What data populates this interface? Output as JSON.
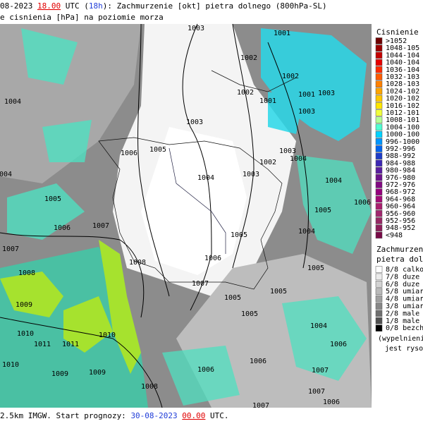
{
  "header": {
    "line1": {
      "prefix": "08-2023 ",
      "time": "18.00",
      "mid1": " UTC (",
      "lead": "18h",
      "mid2": "): Zachmurzenie [okt] pietra dolnego (800hPa-SL)"
    },
    "line2": "e cisnienia [hPa] na poziomie morza"
  },
  "footer": {
    "prefix": "2.5km IMGW. Start prognozy: ",
    "date": "30-08-2023",
    "sep": " ",
    "time": "00.00",
    "suffix": " UTC."
  },
  "pressure_legend": {
    "title": "Cisnienie [hP",
    "items": [
      {
        "label": ">1052",
        "color": "#6e0000"
      },
      {
        "label": "1048-105",
        "color": "#9a0000"
      },
      {
        "label": "1044-104",
        "color": "#c40000"
      },
      {
        "label": "1040-104",
        "color": "#e60000"
      },
      {
        "label": "1036-104",
        "color": "#ff2a00"
      },
      {
        "label": "1032-103",
        "color": "#ff5a00"
      },
      {
        "label": "1028-103",
        "color": "#ff8000"
      },
      {
        "label": "1024-102",
        "color": "#ffa500"
      },
      {
        "label": "1020-102",
        "color": "#ffc800"
      },
      {
        "label": "1016-102",
        "color": "#ffe600"
      },
      {
        "label": "1012-101",
        "color": "#f0ff3c"
      },
      {
        "label": "1008-101",
        "color": "#b4ff96"
      },
      {
        "label": "1004-100",
        "color": "#50ffd2"
      },
      {
        "label": "1000-100",
        "color": "#00d2ff"
      },
      {
        "label": "996-1000",
        "color": "#0096ff"
      },
      {
        "label": "992-996",
        "color": "#0064f0"
      },
      {
        "label": "988-992",
        "color": "#1e3cc8"
      },
      {
        "label": "984-988",
        "color": "#3c28b4"
      },
      {
        "label": "980-984",
        "color": "#5a1ea0"
      },
      {
        "label": "976-980",
        "color": "#6e148c"
      },
      {
        "label": "972-976",
        "color": "#820a82"
      },
      {
        "label": "968-972",
        "color": "#96007d"
      },
      {
        "label": "964-968",
        "color": "#a50a78"
      },
      {
        "label": "960-964",
        "color": "#aa1e6e"
      },
      {
        "label": "956-960",
        "color": "#a0286e"
      },
      {
        "label": "952-956",
        "color": "#962864"
      },
      {
        "label": "948-952",
        "color": "#8c1e5a"
      },
      {
        "label": "<948",
        "color": "#780a46"
      }
    ]
  },
  "cloud_legend": {
    "title1": "Zachmurzenie",
    "title2": "pietra dolneg",
    "items": [
      {
        "label": "8/8 calkow",
        "color": "#ffffff"
      },
      {
        "label": "7/8 duze",
        "color": "#ebebeb"
      },
      {
        "label": "6/8 duze",
        "color": "#d2d2d2"
      },
      {
        "label": "5/8 umiar",
        "color": "#b9b9b9"
      },
      {
        "label": "4/8 umiar",
        "color": "#a0a0a0"
      },
      {
        "label": "3/8 umiar",
        "color": "#878787"
      },
      {
        "label": "2/8 male",
        "color": "#6e6e6e"
      },
      {
        "label": "1/8 male",
        "color": "#505050"
      },
      {
        "label": "0/8 bezch",
        "color": "#000000"
      }
    ],
    "note1": "(wypelnieni",
    "note2": "jest rysowe"
  },
  "isobar_labels": [
    "1003",
    "1001",
    "1002",
    "1002",
    "1001",
    "1003",
    "1001",
    "1002",
    "1004",
    "1003",
    "1003",
    "1006",
    "1005",
    "1003",
    "1002",
    "1004",
    "1003",
    "1004",
    "1004",
    "1004",
    "1005",
    "1005",
    "1006",
    "1006",
    "1007",
    "1004",
    "1005",
    "1007",
    "1006",
    "1008",
    "1005",
    "1008",
    "1007",
    "1005",
    "1005",
    "1009",
    "1005",
    "1010",
    "1010",
    "1011",
    "1011",
    "1004",
    "1006",
    "1010",
    "1009",
    "1009",
    "1006",
    "1006",
    "1007",
    "1008",
    "1007",
    "1007",
    "1006"
  ]
}
